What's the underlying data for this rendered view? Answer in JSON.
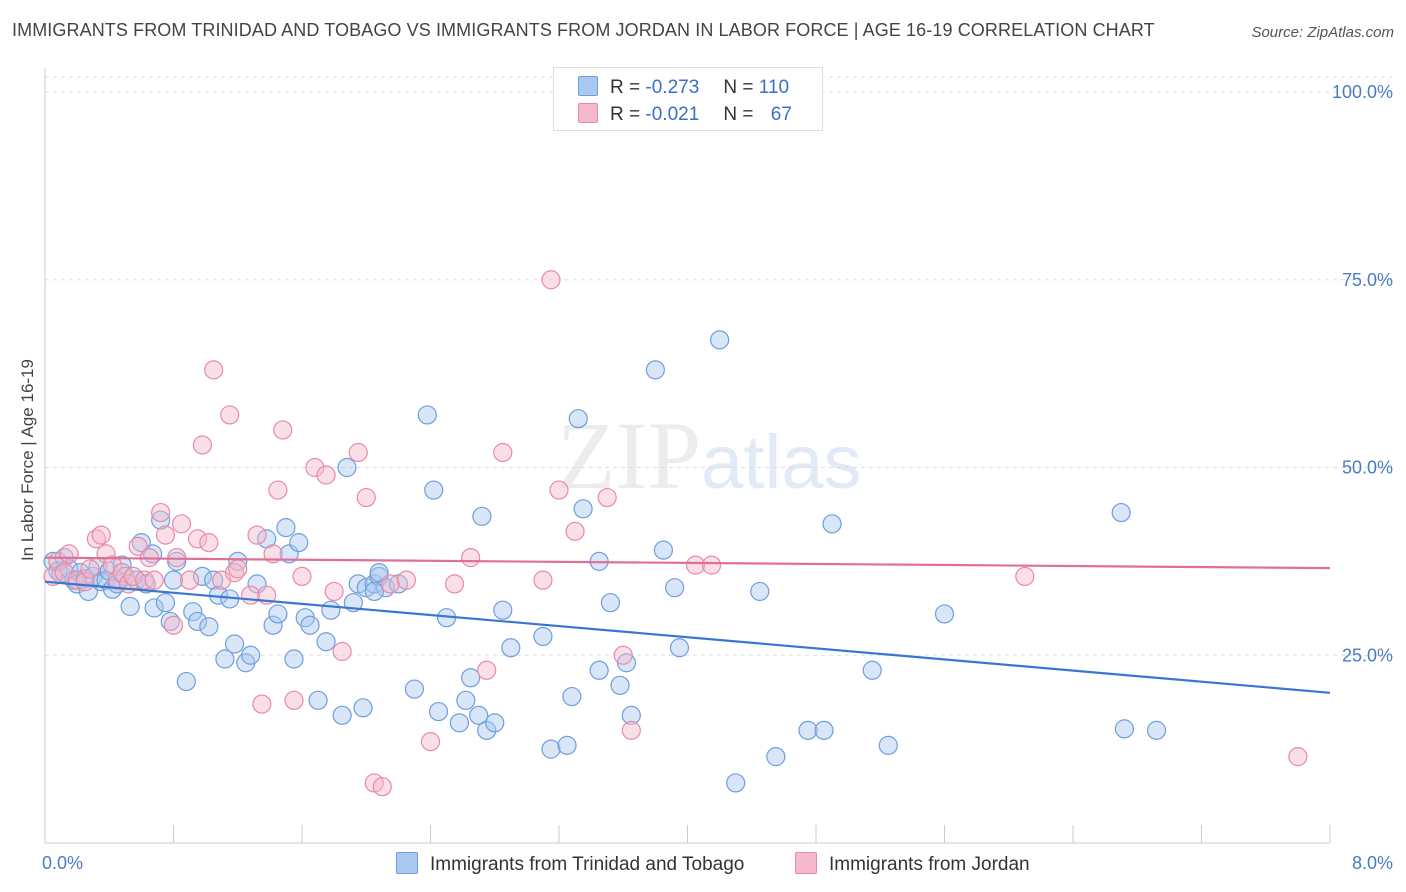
{
  "title": "IMMIGRANTS FROM TRINIDAD AND TOBAGO VS IMMIGRANTS FROM JORDAN IN LABOR FORCE | AGE 16-19 CORRELATION CHART",
  "source": "Source: ZipAtlas.com",
  "watermark": {
    "zip": "ZIP",
    "atlas": "atlas"
  },
  "legend": {
    "r_label": "R =",
    "n_label": "N =",
    "rows": [
      {
        "r": "-0.273",
        "n": "110"
      },
      {
        "r": "-0.021",
        "n": "67"
      }
    ]
  },
  "colors": {
    "blue_fill": "#a9c8f0",
    "blue_stroke": "#6e9fdc",
    "blue_line": "#3a76d0",
    "pink_fill": "#f5b8cc",
    "pink_stroke": "#e88aa8",
    "pink_line": "#e06f98"
  },
  "chart_data": {
    "type": "scatter",
    "title": "IMMIGRANTS FROM TRINIDAD AND TOBAGO VS IMMIGRANTS FROM JORDAN IN LABOR FORCE | AGE 16-19 CORRELATION CHART",
    "xlabel": "",
    "ylabel": "In Labor Force | Age 16-19",
    "xlim": [
      0,
      8
    ],
    "ylim": [
      0,
      102
    ],
    "x_tick_labels": [
      "0.0%",
      "8.0%"
    ],
    "y_tick_labels": [
      "25.0%",
      "50.0%",
      "75.0%",
      "100.0%"
    ],
    "grid": "horizontal dashed",
    "legend_placement": "top-center and bottom",
    "series": [
      {
        "name": "Immigrants from Trinidad and Tobago",
        "trend": [
          [
            0,
            34.8
          ],
          [
            8,
            20.0
          ]
        ],
        "points": [
          [
            0.05,
            37.5
          ],
          [
            0.08,
            36.2
          ],
          [
            0.1,
            35.8
          ],
          [
            0.12,
            38.0
          ],
          [
            0.15,
            36.5
          ],
          [
            0.18,
            35.0
          ],
          [
            0.2,
            34.5
          ],
          [
            0.22,
            36.0
          ],
          [
            0.25,
            35.2
          ],
          [
            0.27,
            33.5
          ],
          [
            0.3,
            35.5
          ],
          [
            0.33,
            36.8
          ],
          [
            0.35,
            34.8
          ],
          [
            0.38,
            35.0
          ],
          [
            0.4,
            36.2
          ],
          [
            0.42,
            33.8
          ],
          [
            0.45,
            34.5
          ],
          [
            0.48,
            37.0
          ],
          [
            0.5,
            35.5
          ],
          [
            0.53,
            31.5
          ],
          [
            0.57,
            35.0
          ],
          [
            0.6,
            40.0
          ],
          [
            0.63,
            34.5
          ],
          [
            0.67,
            38.5
          ],
          [
            0.68,
            31.3
          ],
          [
            0.72,
            43.0
          ],
          [
            0.75,
            32.0
          ],
          [
            0.78,
            29.5
          ],
          [
            0.8,
            35.0
          ],
          [
            0.82,
            37.5
          ],
          [
            0.88,
            21.5
          ],
          [
            0.92,
            30.8
          ],
          [
            0.95,
            29.5
          ],
          [
            0.98,
            35.5
          ],
          [
            1.02,
            28.8
          ],
          [
            1.05,
            35.0
          ],
          [
            1.08,
            33.0
          ],
          [
            1.12,
            24.5
          ],
          [
            1.15,
            32.5
          ],
          [
            1.18,
            26.5
          ],
          [
            1.2,
            37.5
          ],
          [
            1.25,
            24.0
          ],
          [
            1.28,
            25.0
          ],
          [
            1.32,
            34.5
          ],
          [
            1.38,
            40.5
          ],
          [
            1.42,
            29.0
          ],
          [
            1.45,
            30.5
          ],
          [
            1.5,
            42.0
          ],
          [
            1.52,
            38.5
          ],
          [
            1.55,
            24.5
          ],
          [
            1.58,
            40.0
          ],
          [
            1.62,
            30.0
          ],
          [
            1.65,
            29.0
          ],
          [
            1.7,
            19.0
          ],
          [
            1.75,
            26.8
          ],
          [
            1.78,
            31.0
          ],
          [
            1.85,
            17.0
          ],
          [
            1.88,
            50.0
          ],
          [
            1.92,
            32.0
          ],
          [
            1.95,
            34.5
          ],
          [
            1.98,
            18.0
          ],
          [
            2.0,
            34.0
          ],
          [
            2.05,
            34.5
          ],
          [
            2.08,
            35.5
          ],
          [
            2.12,
            34.0
          ],
          [
            2.2,
            34.5
          ],
          [
            2.05,
            33.5
          ],
          [
            2.08,
            36.0
          ],
          [
            2.3,
            20.5
          ],
          [
            2.38,
            57.0
          ],
          [
            2.42,
            47.0
          ],
          [
            2.45,
            17.5
          ],
          [
            2.5,
            30.0
          ],
          [
            2.58,
            16.0
          ],
          [
            2.62,
            19.0
          ],
          [
            2.65,
            22.0
          ],
          [
            2.7,
            17.0
          ],
          [
            2.72,
            43.5
          ],
          [
            2.75,
            15.0
          ],
          [
            2.8,
            16.0
          ],
          [
            2.85,
            31.0
          ],
          [
            2.9,
            26.0
          ],
          [
            3.1,
            27.5
          ],
          [
            3.15,
            12.5
          ],
          [
            3.25,
            13.0
          ],
          [
            3.28,
            19.5
          ],
          [
            3.32,
            56.5
          ],
          [
            3.35,
            44.5
          ],
          [
            3.45,
            23.0
          ],
          [
            3.45,
            37.5
          ],
          [
            3.52,
            32.0
          ],
          [
            3.58,
            21.0
          ],
          [
            3.62,
            24.0
          ],
          [
            3.65,
            17.0
          ],
          [
            3.8,
            63.0
          ],
          [
            3.85,
            39.0
          ],
          [
            3.92,
            34.0
          ],
          [
            3.95,
            26.0
          ],
          [
            4.2,
            67.0
          ],
          [
            4.3,
            8.0
          ],
          [
            4.45,
            33.5
          ],
          [
            4.55,
            11.5
          ],
          [
            4.75,
            15.0
          ],
          [
            4.85,
            15.0
          ],
          [
            4.9,
            42.5
          ],
          [
            5.15,
            23.0
          ],
          [
            5.25,
            13.0
          ],
          [
            5.6,
            30.5
          ],
          [
            6.7,
            44.0
          ],
          [
            6.72,
            15.2
          ],
          [
            6.92,
            15.0
          ]
        ]
      },
      {
        "name": "Immigrants from Jordan",
        "trend": [
          [
            0,
            38.0
          ],
          [
            8,
            36.6
          ]
        ],
        "points": [
          [
            0.05,
            35.5
          ],
          [
            0.08,
            37.5
          ],
          [
            0.12,
            36.0
          ],
          [
            0.15,
            38.5
          ],
          [
            0.2,
            35.0
          ],
          [
            0.25,
            34.8
          ],
          [
            0.28,
            36.5
          ],
          [
            0.32,
            40.5
          ],
          [
            0.35,
            41.0
          ],
          [
            0.38,
            38.5
          ],
          [
            0.42,
            37.0
          ],
          [
            0.45,
            35.0
          ],
          [
            0.48,
            36.0
          ],
          [
            0.52,
            34.5
          ],
          [
            0.55,
            35.5
          ],
          [
            0.58,
            39.5
          ],
          [
            0.62,
            35.0
          ],
          [
            0.65,
            38.0
          ],
          [
            0.68,
            35.0
          ],
          [
            0.72,
            44.0
          ],
          [
            0.75,
            41.0
          ],
          [
            0.8,
            29.0
          ],
          [
            0.82,
            38.0
          ],
          [
            0.85,
            42.5
          ],
          [
            0.9,
            35.0
          ],
          [
            0.95,
            40.5
          ],
          [
            0.98,
            53.0
          ],
          [
            1.02,
            40.0
          ],
          [
            1.05,
            63.0
          ],
          [
            1.1,
            35.0
          ],
          [
            1.15,
            57.0
          ],
          [
            1.18,
            36.0
          ],
          [
            1.2,
            36.5
          ],
          [
            1.28,
            33.0
          ],
          [
            1.32,
            41.0
          ],
          [
            1.35,
            18.5
          ],
          [
            1.38,
            33.0
          ],
          [
            1.42,
            38.5
          ],
          [
            1.45,
            47.0
          ],
          [
            1.48,
            55.0
          ],
          [
            1.55,
            19.0
          ],
          [
            1.6,
            35.5
          ],
          [
            1.68,
            50.0
          ],
          [
            1.75,
            49.0
          ],
          [
            1.8,
            33.5
          ],
          [
            1.85,
            25.5
          ],
          [
            1.95,
            52.0
          ],
          [
            2.0,
            46.0
          ],
          [
            2.05,
            8.0
          ],
          [
            2.1,
            7.5
          ],
          [
            2.15,
            34.5
          ],
          [
            2.25,
            35.0
          ],
          [
            2.4,
            13.5
          ],
          [
            2.55,
            34.5
          ],
          [
            2.65,
            38.0
          ],
          [
            2.75,
            23.0
          ],
          [
            2.85,
            52.0
          ],
          [
            3.1,
            35.0
          ],
          [
            3.15,
            75.0
          ],
          [
            3.2,
            47.0
          ],
          [
            3.3,
            41.5
          ],
          [
            3.5,
            46.0
          ],
          [
            3.6,
            25.0
          ],
          [
            3.65,
            15.0
          ],
          [
            4.05,
            37.0
          ],
          [
            4.15,
            37.0
          ],
          [
            6.1,
            35.5
          ],
          [
            7.8,
            11.5
          ]
        ]
      }
    ]
  },
  "bottom_legend": [
    {
      "label": "Immigrants from Trinidad and Tobago"
    },
    {
      "label": "Immigrants from Jordan"
    }
  ]
}
